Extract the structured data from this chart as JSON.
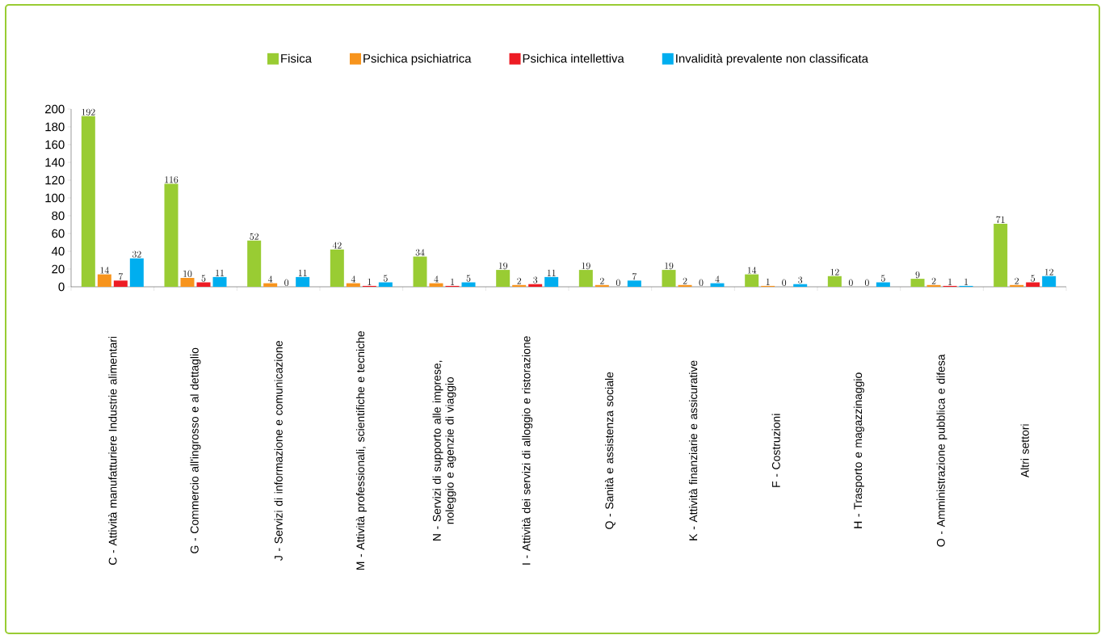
{
  "chart_data": {
    "type": "bar",
    "categories": [
      "C - Attività manufatturiere Industrie alimentari",
      "G - Commercio all'ingrosso e al dettaglio",
      "J - Servizi di informazione e comunicazione",
      "M - Attività professionali, scientifiche e tecniche",
      "N - Servizi di supporto alle imprese, noleggio e agenzie di viaggio",
      "I - Attività dei servizi di alloggio e ristorazione",
      "Q - Sanità e assistenza sociale",
      "K - Attività finanziarie e assicurative",
      "F - Costruzioni",
      "H - Trasporto e magazzinaggio",
      "O - Amministrazione pubblica e difesa",
      "Altri settori"
    ],
    "series": [
      {
        "name": "Fisica",
        "color": "#99cc33",
        "values": [
          192,
          116,
          52,
          42,
          34,
          19,
          19,
          19,
          14,
          12,
          9,
          71
        ]
      },
      {
        "name": "Psichica psichiatrica",
        "color": "#f7941d",
        "values": [
          14,
          10,
          4,
          4,
          4,
          2,
          2,
          2,
          1,
          0,
          2,
          2
        ]
      },
      {
        "name": "Psichica intellettiva",
        "color": "#ed1c24",
        "values": [
          7,
          5,
          0,
          1,
          1,
          3,
          0,
          0,
          0,
          0,
          1,
          5
        ]
      },
      {
        "name": "Invalidità prevalente non classificata",
        "color": "#00aeef",
        "values": [
          32,
          11,
          11,
          5,
          5,
          11,
          7,
          4,
          3,
          5,
          1,
          12
        ]
      }
    ],
    "ylim": [
      0,
      200
    ],
    "yticks": [
      0,
      20,
      40,
      60,
      80,
      100,
      120,
      140,
      160,
      180,
      200
    ],
    "data_labels": true,
    "legend": "top"
  }
}
